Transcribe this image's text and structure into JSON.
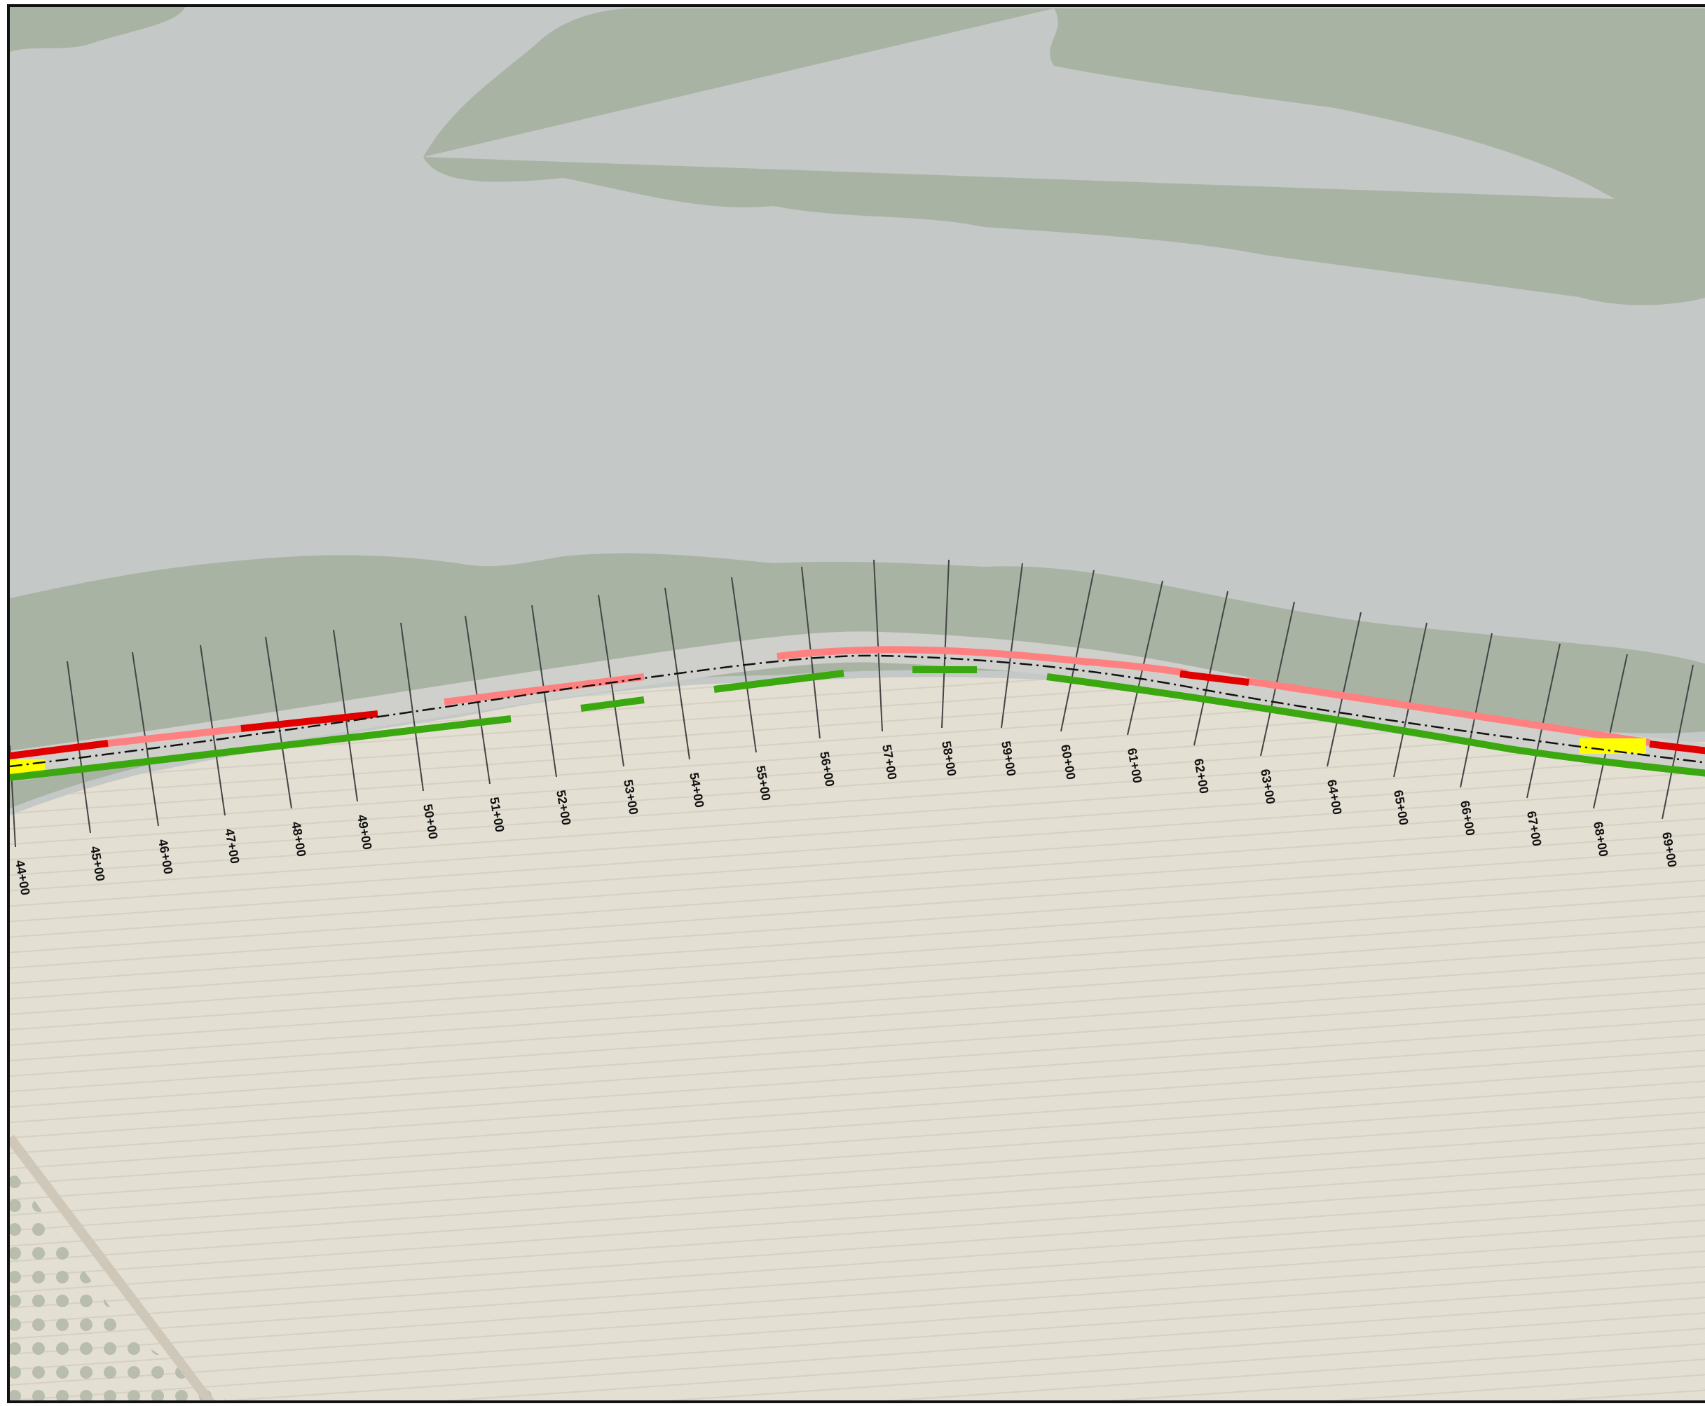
{
  "map": {
    "stations": [
      {
        "label": "44+00"
      },
      {
        "label": "45+00"
      },
      {
        "label": "46+00"
      },
      {
        "label": "47+00"
      },
      {
        "label": "48+00"
      },
      {
        "label": "49+00"
      },
      {
        "label": "50+00"
      },
      {
        "label": "51+00"
      },
      {
        "label": "52+00"
      },
      {
        "label": "53+00"
      },
      {
        "label": "54+00"
      },
      {
        "label": "55+00"
      },
      {
        "label": "56+00"
      },
      {
        "label": "57+00"
      },
      {
        "label": "58+00"
      },
      {
        "label": "59+00"
      },
      {
        "label": "60+00"
      },
      {
        "label": "61+00"
      },
      {
        "label": "62+00"
      },
      {
        "label": "63+00"
      },
      {
        "label": "64+00"
      },
      {
        "label": "65+00"
      },
      {
        "label": "66+00"
      },
      {
        "label": "67+00"
      },
      {
        "label": "68+00"
      },
      {
        "label": "69+00"
      }
    ],
    "colors": {
      "water": "#c4c8c6",
      "field": "#e4dfd3",
      "trees": "#a9b3a4",
      "severe": "#e00000",
      "moderate": "#ff8080",
      "low": "#3aa80e",
      "caution": "#ffff00",
      "centerline": "#111111"
    }
  }
}
